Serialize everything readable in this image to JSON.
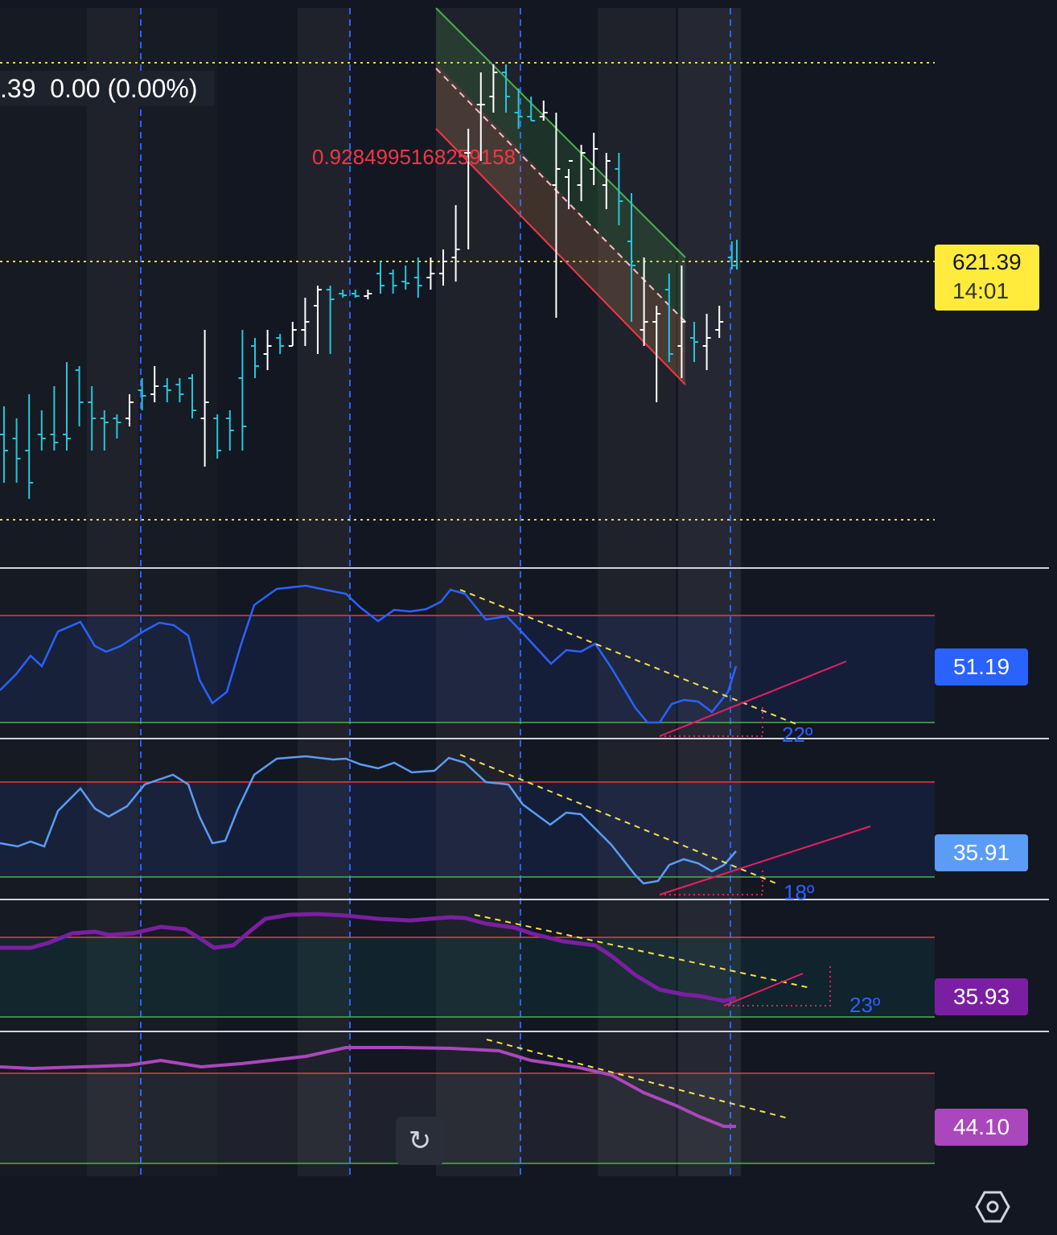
{
  "legend": {
    "change_text": ".39  0.00 (0.00%)"
  },
  "price": {
    "last": "621.39",
    "countdown": "14:01"
  },
  "measure_label": "0.9284995168259158",
  "indicators": [
    {
      "value": "51.19",
      "color": "#2962ff",
      "angle": "22º"
    },
    {
      "value": "35.91",
      "color": "#5b9cf6",
      "angle": "18º"
    },
    {
      "value": "35.93",
      "color": "#7b1fa2",
      "angle": "23º"
    },
    {
      "value": "44.10",
      "color": "#ab47bc",
      "angle": ""
    }
  ],
  "icons": {
    "reset": "reset-icon",
    "settings": "settings-hexagon-icon"
  },
  "chart_data": {
    "type": "bar",
    "main_series": {
      "ohlc": [
        [
          0,
          505,
          600,
          540,
          560
        ],
        [
          1,
          520,
          600,
          545,
          570
        ],
        [
          2,
          490,
          620,
          560,
          600
        ],
        [
          3,
          510,
          560,
          540,
          545
        ],
        [
          4,
          480,
          560,
          540,
          550
        ],
        [
          5,
          450,
          560,
          540,
          545
        ],
        [
          6,
          455,
          530,
          460,
          500
        ],
        [
          7,
          480,
          560,
          500,
          520
        ],
        [
          8,
          510,
          560,
          520,
          525
        ],
        [
          9,
          515,
          545,
          520,
          525
        ],
        [
          10,
          490,
          530,
          520,
          500
        ],
        [
          11,
          470,
          510,
          485,
          492
        ],
        [
          12,
          455,
          500,
          490,
          480
        ],
        [
          13,
          470,
          500,
          480,
          485
        ],
        [
          14,
          470,
          500,
          478,
          490
        ],
        [
          15,
          465,
          520,
          470,
          510
        ],
        [
          16,
          410,
          580,
          520,
          500
        ],
        [
          17,
          515,
          570,
          520,
          560
        ],
        [
          18,
          510,
          560,
          520,
          535
        ],
        [
          19,
          410,
          560,
          470,
          530
        ],
        [
          20,
          420,
          470,
          430,
          455
        ],
        [
          21,
          410,
          460,
          440,
          430
        ],
        [
          22,
          415,
          440,
          420,
          430
        ],
        [
          23,
          400,
          430,
          430,
          410
        ],
        [
          24,
          370,
          430,
          410,
          400
        ],
        [
          25,
          355,
          440,
          380,
          360
        ],
        [
          26,
          355,
          440,
          360,
          372
        ],
        [
          27,
          360,
          370,
          365,
          367
        ],
        [
          28,
          360,
          370,
          365,
          368
        ],
        [
          29,
          360,
          372,
          368,
          365
        ],
        [
          30,
          325,
          365,
          340,
          355
        ],
        [
          31,
          335,
          365,
          340,
          355
        ],
        [
          32,
          330,
          360,
          350,
          352
        ],
        [
          33,
          320,
          370,
          345,
          355
        ],
        [
          34,
          320,
          360,
          345,
          340
        ],
        [
          35,
          310,
          355,
          340,
          325
        ],
        [
          36,
          255,
          350,
          320,
          310
        ],
        [
          37,
          160,
          310,
          190,
          190
        ],
        [
          38,
          90,
          200,
          130,
          130
        ],
        [
          39,
          80,
          140,
          120,
          90
        ],
        [
          40,
          80,
          140,
          90,
          120
        ],
        [
          41,
          110,
          160,
          140,
          145
        ],
        [
          42,
          120,
          150,
          145,
          150
        ],
        [
          43,
          125,
          150,
          145,
          140
        ],
        [
          44,
          140,
          395,
          230,
          210
        ],
        [
          45,
          210,
          260,
          220,
          200
        ],
        [
          46,
          180,
          250,
          230,
          190
        ],
        [
          47,
          165,
          230,
          210,
          185
        ],
        [
          48,
          190,
          260,
          230,
          200
        ],
        [
          49,
          190,
          280,
          210,
          250
        ],
        [
          50,
          240,
          400,
          300,
          330
        ],
        [
          51,
          320,
          430,
          410,
          400
        ],
        [
          52,
          380,
          500,
          400,
          390
        ],
        [
          53,
          340,
          450,
          360,
          440
        ],
        [
          54,
          330,
          470,
          430,
          400
        ],
        [
          55,
          400,
          450,
          420,
          425
        ],
        [
          56,
          390,
          460,
          430,
          420
        ],
        [
          57,
          380,
          420,
          410,
          400
        ],
        [
          58,
          300,
          335,
          320,
          330
        ]
      ],
      "last_price": 621.39
    }
  }
}
